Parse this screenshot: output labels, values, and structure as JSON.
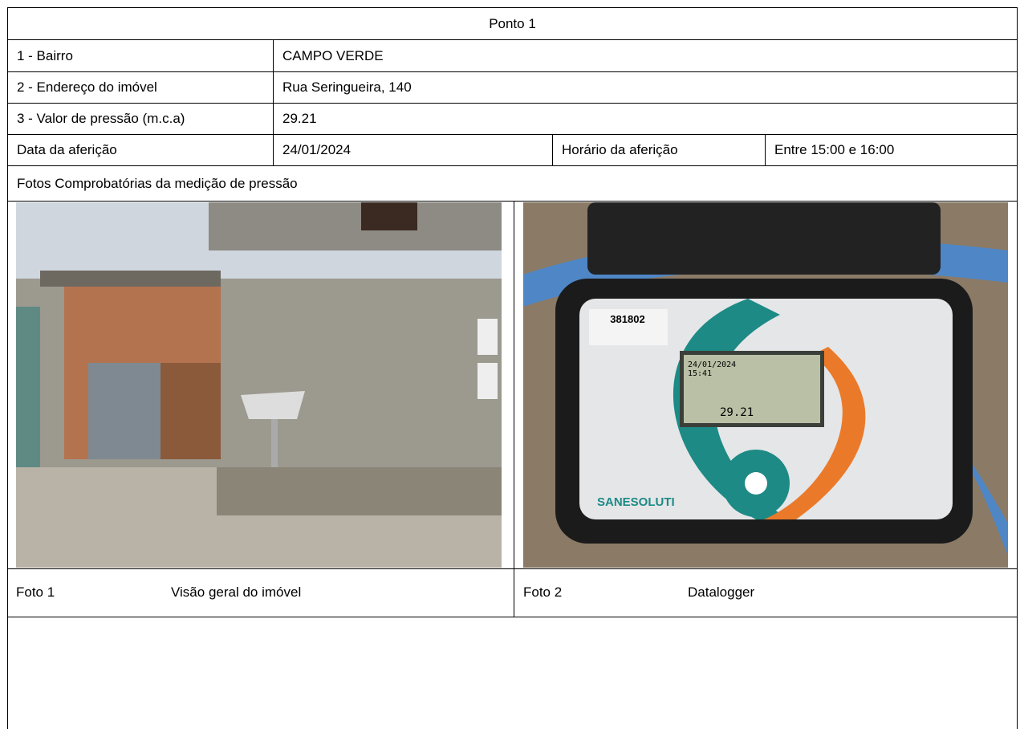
{
  "header": {
    "title": "Ponto 1"
  },
  "table": {
    "rows": [
      [
        "1 - Bairro",
        "CAMPO VERDE"
      ],
      [
        "2 - Endereço do imóvel",
        "Rua Seringueira, 140"
      ],
      [
        "3 - Valor de pressão (m.c.a)",
        "29.21"
      ],
      [
        "Data da aferição",
        "24/01/2024",
        "Horário da aferição",
        "Entre 15:00 e 16:00"
      ]
    ]
  },
  "photos_section": {
    "title": "Fotos Comprobatórias da medição de pressão",
    "photos": [
      {
        "label": "Foto 1",
        "caption": "Visão geral do imóvel"
      },
      {
        "label": "Foto 2",
        "caption": "Datalogger",
        "device_texts": [
          "381802",
          "24/01/2024",
          "15:41",
          "29.21",
          "SANESOLUTI"
        ]
      }
    ]
  }
}
